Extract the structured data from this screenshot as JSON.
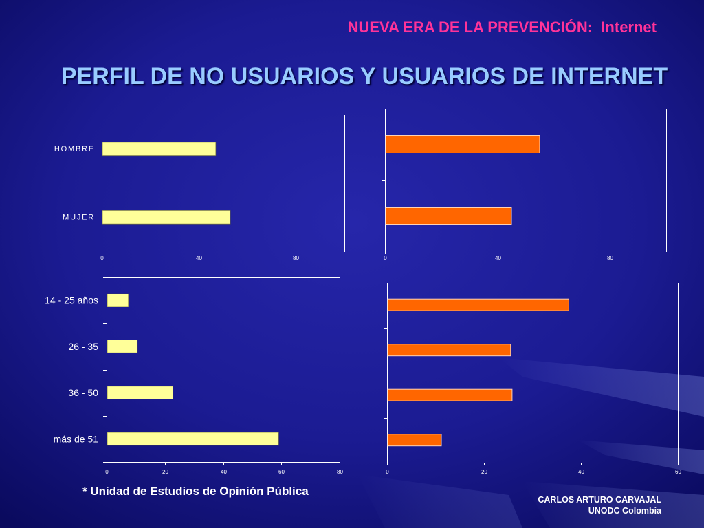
{
  "header": {
    "subtitle": "NUEVA ERA DE LA PREVENCIÓN:  Internet",
    "title": "PERFIL DE NO USUARIOS Y USUARIOS DE INTERNET"
  },
  "footnote": "* Unidad de Estudios de Opinión Pública",
  "author": {
    "name": "CARLOS ARTURO CARVAJAL",
    "organization": "UNODC Colombia"
  },
  "colors": {
    "background": "#1B1B92",
    "title": "#99CCFF",
    "subtitle": "#FF3399",
    "text": "#FFFFFF"
  },
  "chart_data": [
    {
      "type": "bar",
      "orientation": "horizontal",
      "categories": [
        "HOMBRE",
        "MUJER"
      ],
      "series": [
        {
          "values": [
            47,
            53
          ],
          "color": "#FFFF99"
        }
      ],
      "xlim": [
        0,
        100
      ],
      "xticks": [
        0,
        40,
        80
      ],
      "grid": false
    },
    {
      "type": "bar",
      "orientation": "horizontal",
      "series": [
        {
          "values": [
            55,
            45
          ],
          "color": "#FF6600"
        }
      ],
      "xlim": [
        0,
        100
      ],
      "xticks": [
        0,
        40,
        80
      ],
      "grid": false
    },
    {
      "type": "bar",
      "orientation": "horizontal",
      "categories": [
        "14 - 25 años",
        "26 - 35",
        "36 - 50",
        "más de 51"
      ],
      "series": [
        {
          "values": [
            7.5,
            10.6,
            22.8,
            59.1
          ],
          "color": "#FFFF99"
        }
      ],
      "xlim": [
        0,
        80
      ],
      "xticks": [
        0,
        20,
        40,
        60,
        80
      ],
      "grid": false
    },
    {
      "type": "bar",
      "orientation": "horizontal",
      "series": [
        {
          "values": [
            37.5,
            25.5,
            25.8,
            11.2
          ],
          "color": "#FF6600"
        }
      ],
      "xlim": [
        0,
        60
      ],
      "xticks": [
        0,
        20,
        40,
        60
      ],
      "grid": false
    }
  ]
}
